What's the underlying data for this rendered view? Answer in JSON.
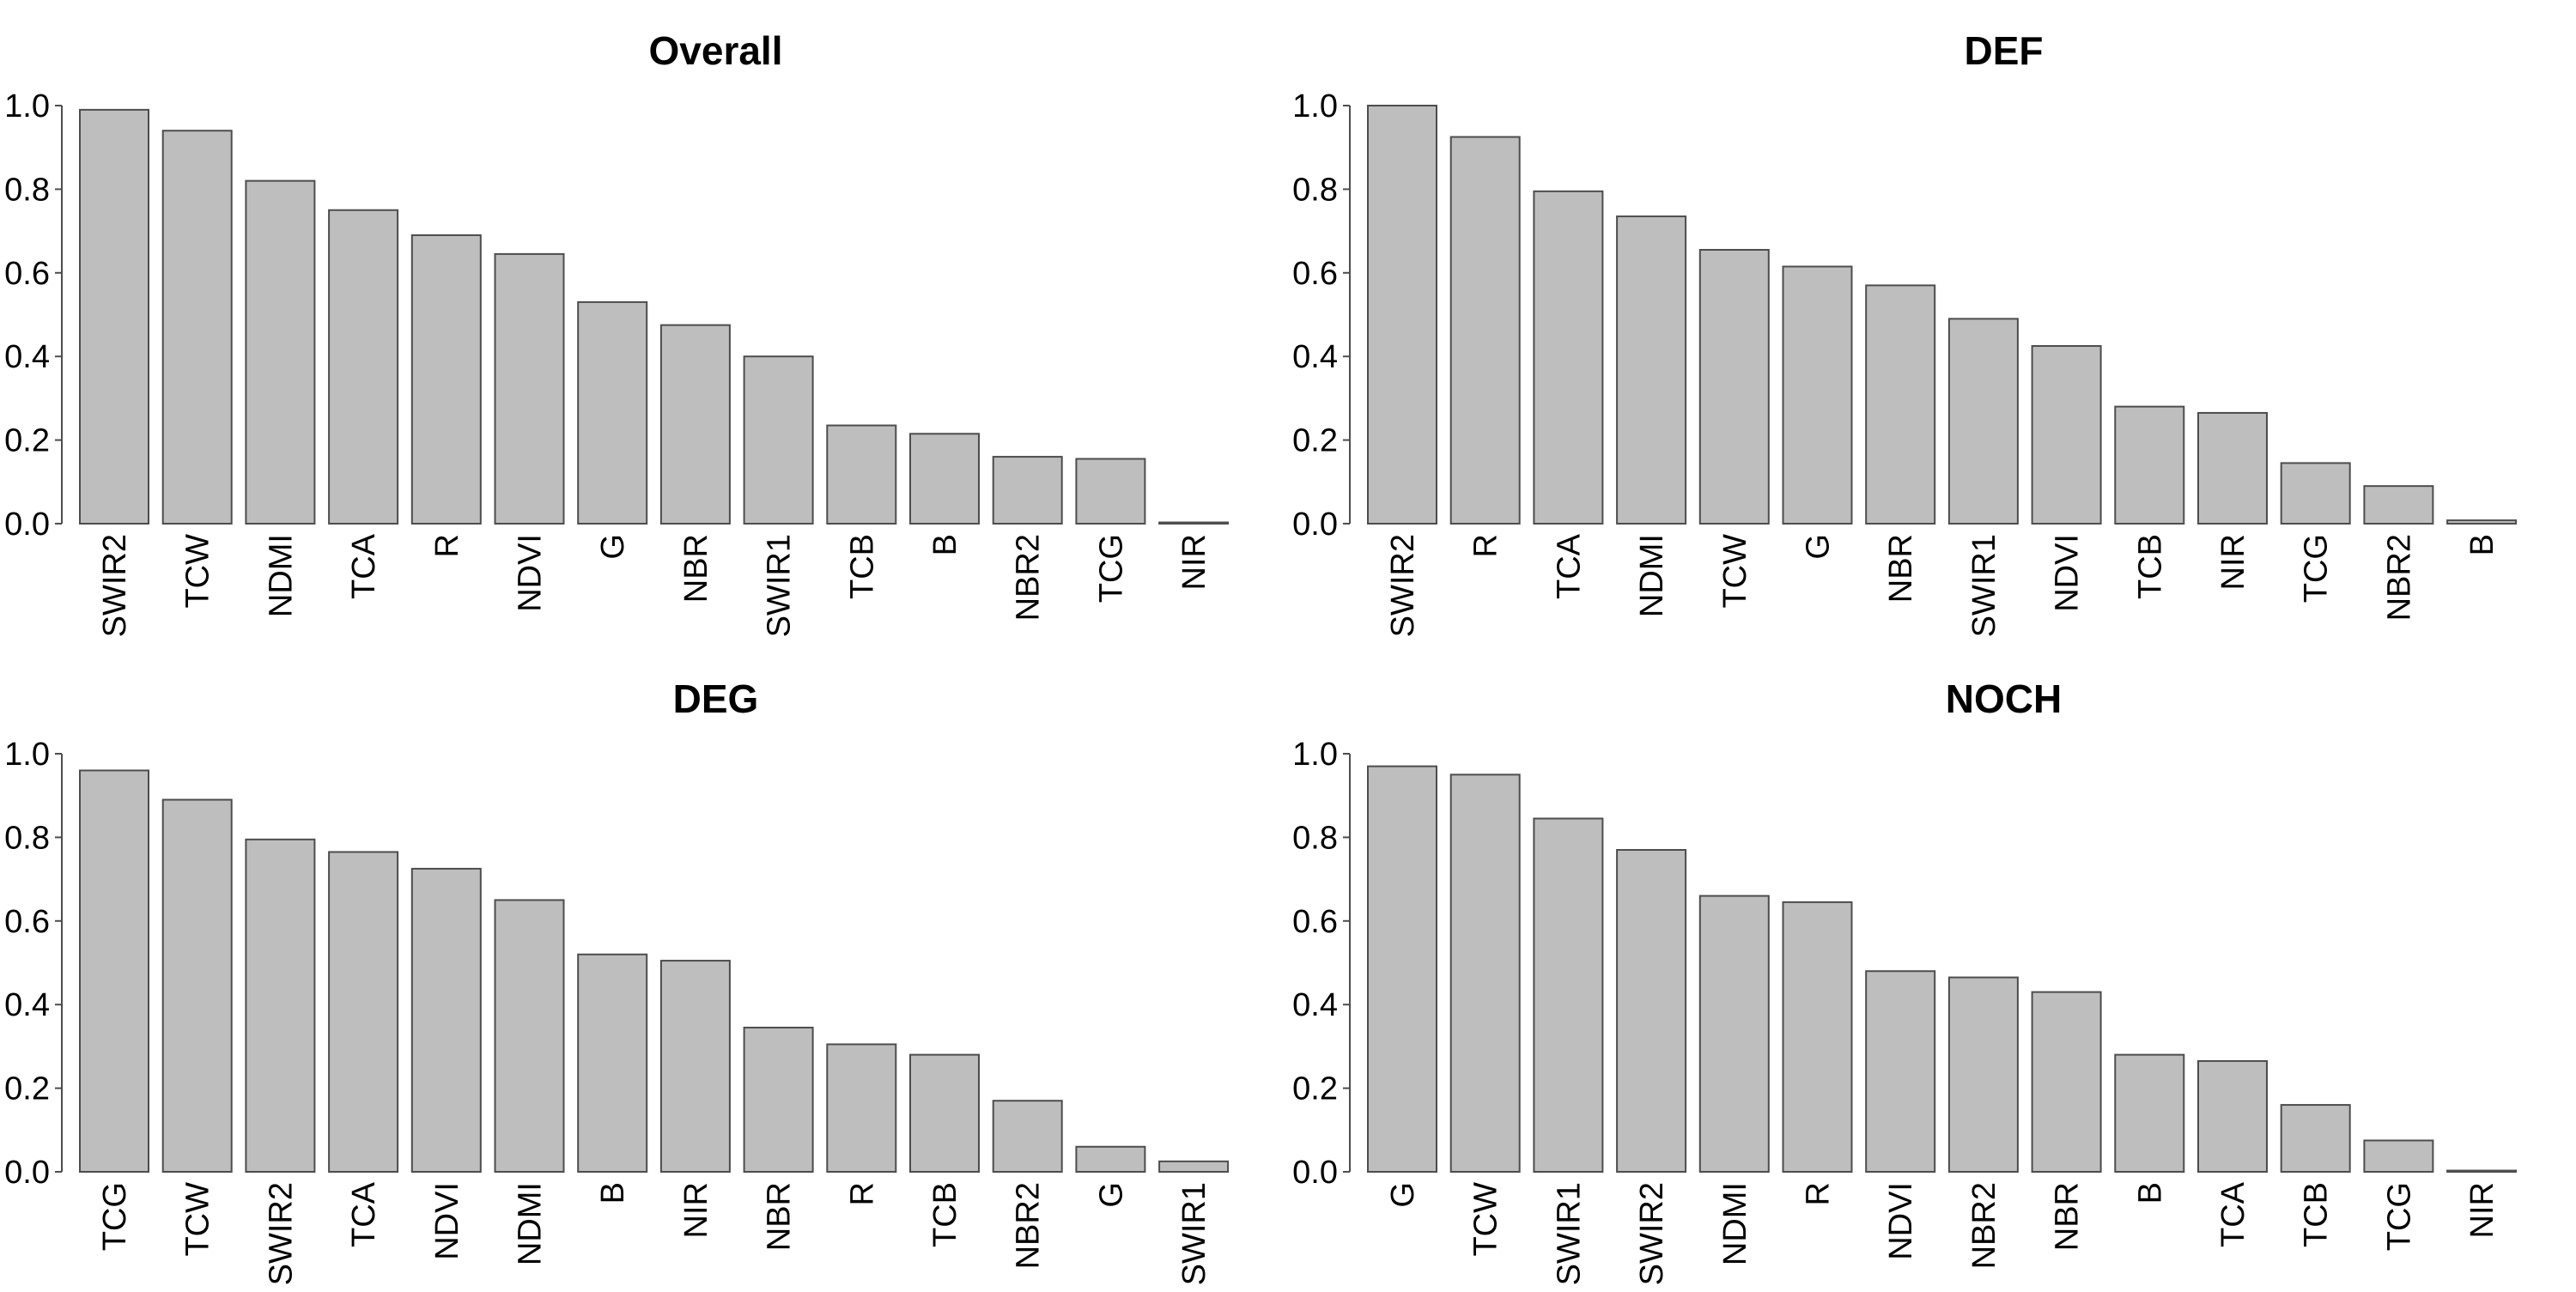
{
  "chart_data": [
    {
      "type": "bar",
      "title": "Overall",
      "categories": [
        "SWIR2",
        "TCW",
        "NDMI",
        "TCA",
        "R",
        "NDVI",
        "G",
        "NBR",
        "SWIR1",
        "TCB",
        "B",
        "NBR2",
        "TCG",
        "NIR"
      ],
      "values": [
        0.99,
        0.94,
        0.82,
        0.75,
        0.69,
        0.645,
        0.53,
        0.475,
        0.4,
        0.235,
        0.215,
        0.16,
        0.155,
        0.003
      ],
      "ylim": [
        0,
        1
      ],
      "yticks": [
        "0.0",
        "0.2",
        "0.4",
        "0.6",
        "0.8",
        "1.0"
      ],
      "xlabel": "",
      "ylabel": "",
      "grid": false
    },
    {
      "type": "bar",
      "title": "DEF",
      "categories": [
        "SWIR2",
        "R",
        "TCA",
        "NDMI",
        "TCW",
        "G",
        "NBR",
        "SWIR1",
        "NDVI",
        "TCB",
        "NIR",
        "TCG",
        "NBR2",
        "B"
      ],
      "values": [
        1.0,
        0.925,
        0.795,
        0.735,
        0.655,
        0.615,
        0.57,
        0.49,
        0.425,
        0.28,
        0.265,
        0.145,
        0.09,
        0.008
      ],
      "ylim": [
        0,
        1
      ],
      "yticks": [
        "0.0",
        "0.2",
        "0.4",
        "0.6",
        "0.8",
        "1.0"
      ],
      "xlabel": "",
      "ylabel": "",
      "grid": false
    },
    {
      "type": "bar",
      "title": "DEG",
      "categories": [
        "TCG",
        "TCW",
        "SWIR2",
        "TCA",
        "NDVI",
        "NDMI",
        "B",
        "NIR",
        "NBR",
        "R",
        "TCB",
        "NBR2",
        "G",
        "SWIR1"
      ],
      "values": [
        0.96,
        0.89,
        0.795,
        0.765,
        0.725,
        0.65,
        0.52,
        0.505,
        0.345,
        0.305,
        0.28,
        0.17,
        0.06,
        0.025
      ],
      "ylim": [
        0,
        1
      ],
      "yticks": [
        "0.0",
        "0.2",
        "0.4",
        "0.6",
        "0.8",
        "1.0"
      ],
      "xlabel": "",
      "ylabel": "",
      "grid": false
    },
    {
      "type": "bar",
      "title": "NOCH",
      "categories": [
        "G",
        "TCW",
        "SWIR1",
        "SWIR2",
        "NDMI",
        "R",
        "NDVI",
        "NBR2",
        "NBR",
        "B",
        "TCA",
        "TCB",
        "TCG",
        "NIR"
      ],
      "values": [
        0.97,
        0.95,
        0.845,
        0.77,
        0.66,
        0.645,
        0.48,
        0.465,
        0.43,
        0.28,
        0.265,
        0.16,
        0.075,
        0.003
      ],
      "ylim": [
        0,
        1
      ],
      "yticks": [
        "0.0",
        "0.2",
        "0.4",
        "0.6",
        "0.8",
        "1.0"
      ],
      "xlabel": "",
      "ylabel": "",
      "grid": false
    }
  ]
}
